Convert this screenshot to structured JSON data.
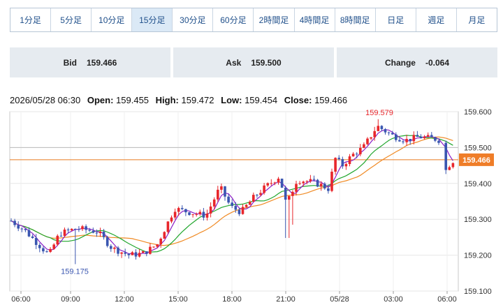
{
  "tabs": [
    {
      "label": "1分足",
      "active": false
    },
    {
      "label": "5分足",
      "active": false
    },
    {
      "label": "10分足",
      "active": false
    },
    {
      "label": "15分足",
      "active": true
    },
    {
      "label": "30分足",
      "active": false
    },
    {
      "label": "60分足",
      "active": false
    },
    {
      "label": "2時間足",
      "active": false
    },
    {
      "label": "4時間足",
      "active": false
    },
    {
      "label": "8時間足",
      "active": false
    },
    {
      "label": "日足",
      "active": false
    },
    {
      "label": "週足",
      "active": false
    },
    {
      "label": "月足",
      "active": false
    }
  ],
  "quotes": {
    "bid": {
      "label": "Bid",
      "value": "159.466"
    },
    "ask": {
      "label": "Ask",
      "value": "159.500"
    },
    "change": {
      "label": "Change",
      "value": "-0.064"
    }
  },
  "ohlc": {
    "datetime": "2026/05/28 06:30",
    "open_label": "Open:",
    "open": "159.455",
    "high_label": "High:",
    "high": "159.472",
    "low_label": "Low:",
    "low": "159.454",
    "close_label": "Close:",
    "close": "159.466"
  },
  "chart_data": {
    "type": "candlestick",
    "yaxis_ticks": [
      "159.600",
      "159.500",
      "159.400",
      "159.300",
      "159.200",
      "159.100"
    ],
    "ylim": [
      159.1,
      159.6
    ],
    "xaxis_ticks": [
      "06:00",
      "09:00",
      "12:00",
      "15:00",
      "18:00",
      "21:00",
      "05/28",
      "03:00",
      "06:00"
    ],
    "current_price": "159.466",
    "reference_line": 159.5,
    "annotations": {
      "high": "159.579",
      "low": "159.175"
    },
    "colors": {
      "up": "#e8262b",
      "down": "#3a56b0",
      "ma_short": "#8b1fc7",
      "ma_mid": "#21a62d",
      "ma_long": "#f08a24",
      "price_line": "#e87a1f",
      "price_label_bg": "#ef7d28",
      "high_label": "#e8262b",
      "low_label": "#3a56b0"
    }
  }
}
